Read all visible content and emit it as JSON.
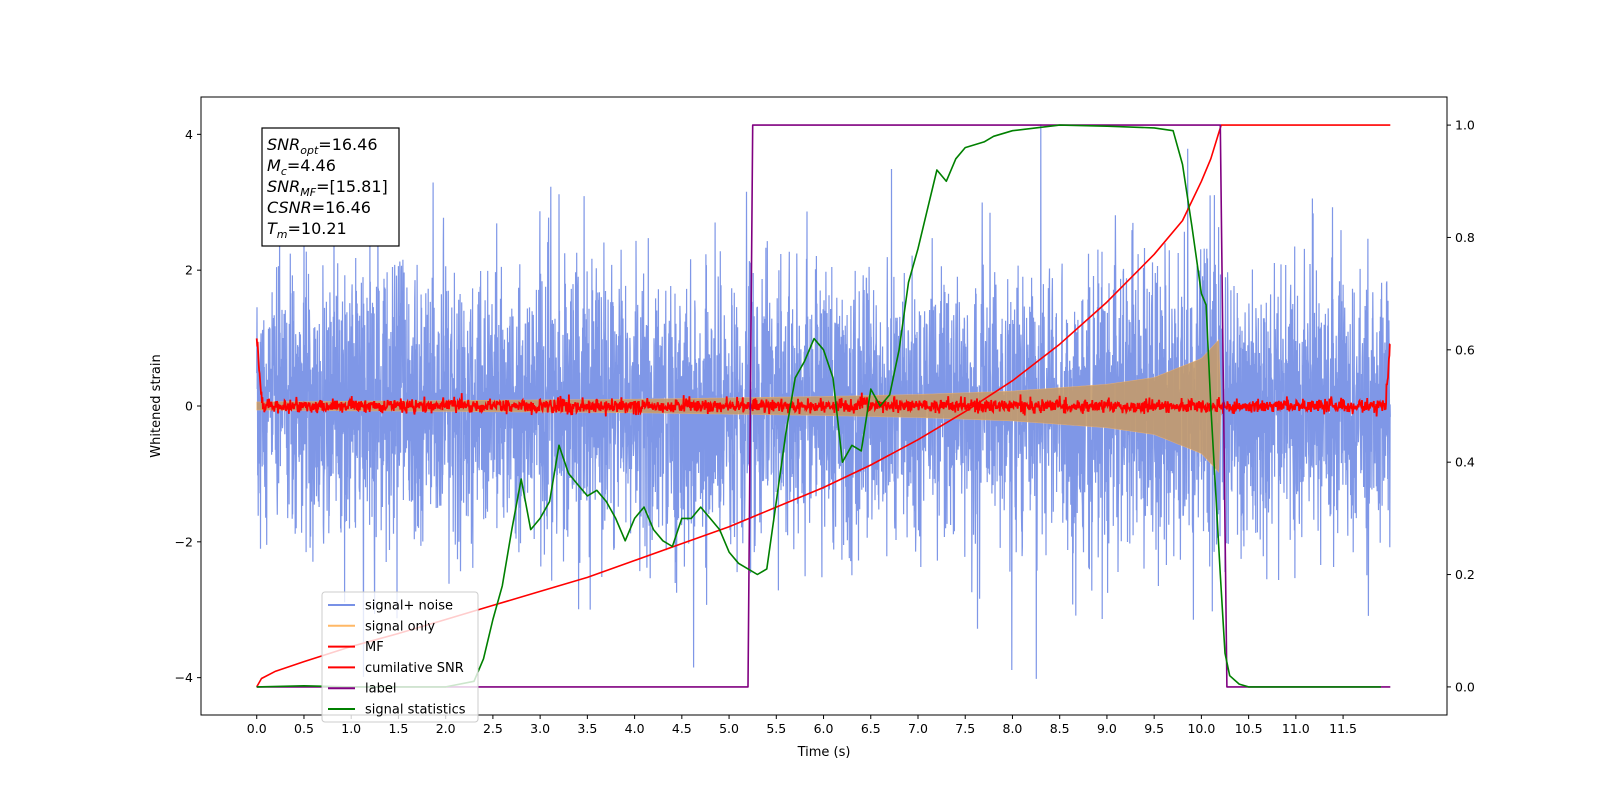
{
  "chart_data": {
    "type": "line",
    "title": "",
    "xlabel": "Time (s)",
    "ylabel": "Whitened strain",
    "y2label": "",
    "xlim": [
      -0.59,
      12.6
    ],
    "ylim": [
      -4.55,
      4.55
    ],
    "y2lim": [
      -0.05,
      1.05
    ],
    "x_ticks": [
      "0.0",
      "0.5",
      "1.0",
      "1.5",
      "2.0",
      "2.5",
      "3.0",
      "3.5",
      "4.0",
      "4.5",
      "5.0",
      "5.5",
      "6.0",
      "6.5",
      "7.0",
      "7.5",
      "8.0",
      "8.5",
      "9.0",
      "9.5",
      "10.0",
      "10.5",
      "11.0",
      "11.5"
    ],
    "y_ticks": [
      "−4",
      "−2",
      "0",
      "2",
      "4"
    ],
    "y2_ticks": [
      "0.0",
      "0.2",
      "0.4",
      "0.6",
      "0.8",
      "1.0"
    ],
    "grid": false,
    "legend_position": "lower-left",
    "annotation": [
      {
        "sym": "SNR",
        "sub": "opt",
        "rest": "=16.46"
      },
      {
        "sym": "M",
        "sub": "c",
        "rest": "=4.46"
      },
      {
        "sym": "SNR",
        "sub": "MF",
        "rest": "=[15.81]"
      },
      {
        "sym": "CSNR",
        "sub": "",
        "rest": "=16.46"
      },
      {
        "sym": "T",
        "sub": "m",
        "rest": "=10.21"
      }
    ],
    "series": [
      {
        "name": "signal+ noise",
        "color": "#7891e6",
        "axis": "left",
        "style": "noise",
        "x_range": [
          0.0,
          12.0
        ],
        "std": 1.0,
        "notable_peaks": [
          4.15,
          -3.85
        ],
        "note": "dense random noise ~ N(0,1) with signal added, t in [0,12]"
      },
      {
        "name": "signal only",
        "color": "#ffb866",
        "axis": "left",
        "style": "chirp",
        "x_range": [
          0.0,
          10.21
        ],
        "envelope": {
          "x": [
            0.0,
            2.0,
            4.0,
            6.0,
            7.0,
            8.0,
            9.0,
            9.5,
            10.0,
            10.2,
            10.21
          ],
          "y": [
            0.06,
            0.08,
            0.1,
            0.14,
            0.17,
            0.22,
            0.32,
            0.42,
            0.7,
            1.0,
            0.0
          ]
        }
      },
      {
        "name": "MF",
        "color": "#ff0000",
        "axis": "left",
        "style": "mf-noise",
        "x_range": [
          0.0,
          12.0
        ],
        "std": 0.05,
        "start_value": 1.0,
        "end_value": 0.9
      },
      {
        "name": "cumilative SNR",
        "color": "#ff0000",
        "axis": "right",
        "x": [
          0.0,
          0.05,
          0.2,
          0.5,
          1.0,
          1.5,
          2.0,
          2.5,
          3.0,
          3.5,
          4.0,
          4.5,
          5.0,
          5.5,
          6.0,
          6.5,
          7.0,
          7.5,
          8.0,
          8.5,
          9.0,
          9.5,
          9.8,
          10.0,
          10.1,
          10.2,
          10.21,
          12.0
        ],
        "y": [
          0.0,
          0.015,
          0.028,
          0.045,
          0.072,
          0.095,
          0.12,
          0.145,
          0.17,
          0.195,
          0.225,
          0.255,
          0.285,
          0.32,
          0.355,
          0.395,
          0.44,
          0.49,
          0.545,
          0.61,
          0.685,
          0.77,
          0.83,
          0.9,
          0.94,
          0.995,
          1.0,
          1.0
        ]
      },
      {
        "name": "label",
        "color": "#800080",
        "axis": "right",
        "x": [
          0.0,
          5.2,
          5.25,
          10.2,
          10.27,
          12.0
        ],
        "y": [
          0.0,
          0.0,
          1.0,
          1.0,
          0.0,
          0.0
        ]
      },
      {
        "name": "signal statistics",
        "color": "#008000",
        "axis": "right",
        "x": [
          0.0,
          0.5,
          1.0,
          1.5,
          2.0,
          2.3,
          2.4,
          2.5,
          2.6,
          2.7,
          2.8,
          2.9,
          3.0,
          3.1,
          3.2,
          3.3,
          3.4,
          3.5,
          3.6,
          3.7,
          3.8,
          3.9,
          4.0,
          4.1,
          4.2,
          4.3,
          4.4,
          4.5,
          4.6,
          4.7,
          4.8,
          4.9,
          5.0,
          5.1,
          5.2,
          5.3,
          5.4,
          5.5,
          5.6,
          5.7,
          5.8,
          5.9,
          6.0,
          6.1,
          6.2,
          6.3,
          6.4,
          6.5,
          6.6,
          6.7,
          6.8,
          6.9,
          7.0,
          7.1,
          7.2,
          7.3,
          7.4,
          7.5,
          7.7,
          7.8,
          8.0,
          8.5,
          9.0,
          9.5,
          9.7,
          9.8,
          9.9,
          10.0,
          10.05,
          10.1,
          10.15,
          10.2,
          10.25,
          10.3,
          10.4,
          10.5,
          11.0,
          11.9
        ],
        "y": [
          0.0,
          0.002,
          0.0,
          0.0,
          0.0,
          0.01,
          0.05,
          0.12,
          0.18,
          0.28,
          0.37,
          0.28,
          0.3,
          0.33,
          0.43,
          0.38,
          0.36,
          0.34,
          0.35,
          0.33,
          0.3,
          0.26,
          0.3,
          0.32,
          0.28,
          0.26,
          0.25,
          0.3,
          0.3,
          0.32,
          0.3,
          0.28,
          0.24,
          0.22,
          0.21,
          0.2,
          0.21,
          0.33,
          0.45,
          0.55,
          0.58,
          0.62,
          0.6,
          0.55,
          0.4,
          0.43,
          0.42,
          0.53,
          0.5,
          0.52,
          0.6,
          0.72,
          0.78,
          0.85,
          0.92,
          0.9,
          0.94,
          0.96,
          0.97,
          0.98,
          0.99,
          1.0,
          0.998,
          0.995,
          0.99,
          0.93,
          0.82,
          0.7,
          0.68,
          0.5,
          0.35,
          0.2,
          0.06,
          0.02,
          0.005,
          0.0,
          0.0,
          0.0
        ]
      }
    ]
  }
}
